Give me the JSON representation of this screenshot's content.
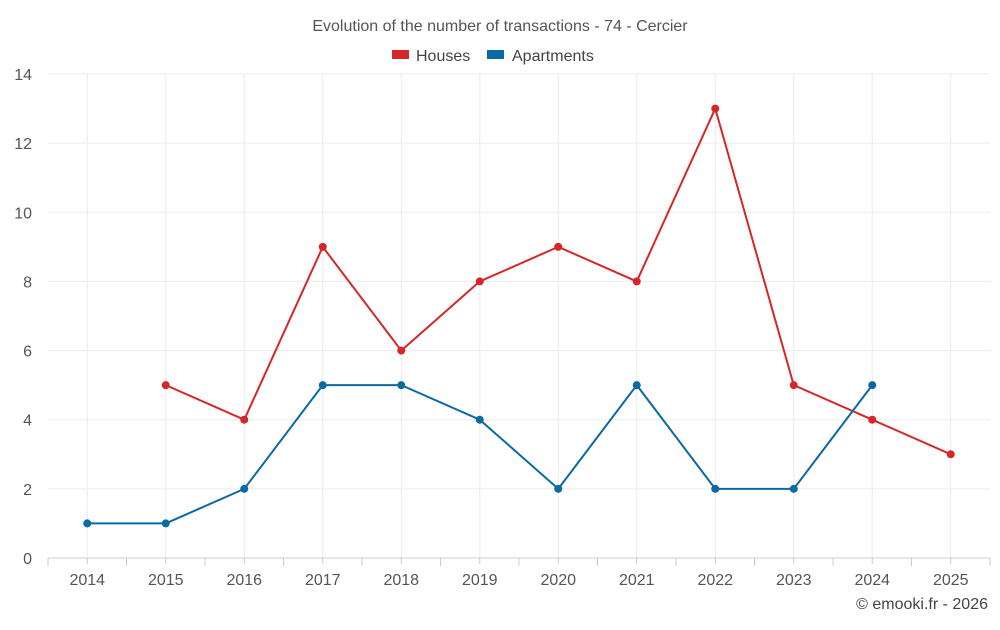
{
  "chart_data": {
    "type": "line",
    "title": "Evolution of the number of transactions - 74 - Cercier",
    "x": [
      2014,
      2015,
      2016,
      2017,
      2018,
      2019,
      2020,
      2021,
      2022,
      2023,
      2024,
      2025
    ],
    "x_tick_labels": [
      "2014",
      "2015",
      "2016",
      "2017",
      "2018",
      "2019",
      "2020",
      "2021",
      "2022",
      "2023",
      "2024",
      "2025"
    ],
    "y_tick_labels": [
      "0",
      "2",
      "4",
      "6",
      "8",
      "10",
      "12",
      "14"
    ],
    "ylim": [
      0,
      14
    ],
    "grid": true,
    "legend_position": "top-center",
    "series": [
      {
        "name": "Houses",
        "color": "#d62728",
        "values": [
          null,
          5,
          4,
          9,
          6,
          8,
          9,
          8,
          13,
          5,
          4,
          3
        ]
      },
      {
        "name": "Apartments",
        "color": "#0b6aa2",
        "values": [
          1,
          1,
          2,
          5,
          5,
          4,
          2,
          5,
          2,
          2,
          5,
          null
        ]
      }
    ],
    "credit": "© emooki.fr - 2026"
  }
}
